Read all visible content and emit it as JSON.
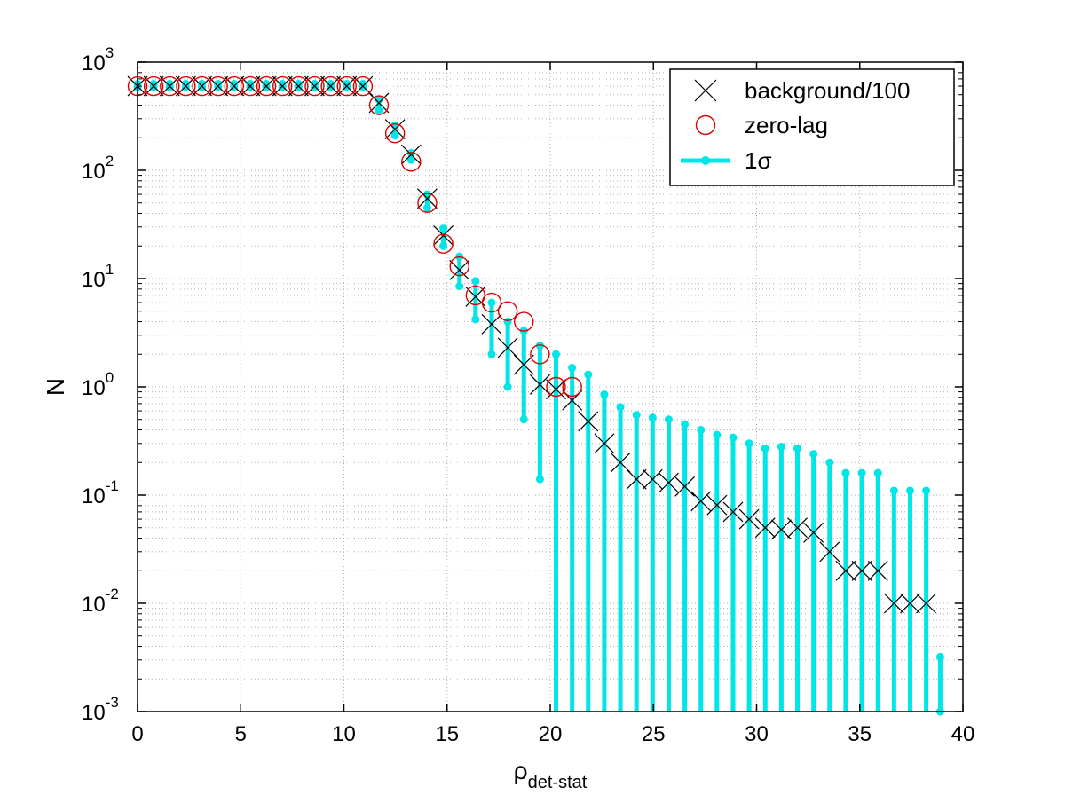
{
  "chart_data": {
    "type": "scatter",
    "title": "",
    "xlabel": "ρ",
    "xlabel_sub": "det-stat",
    "ylabel": "N",
    "xlim": [
      0,
      40
    ],
    "ylim": [
      0.001,
      1000
    ],
    "yscale": "log",
    "grid": true,
    "legend_position": "top-right",
    "x_ticks": [
      "0",
      "5",
      "10",
      "15",
      "20",
      "25",
      "30",
      "35",
      "40"
    ],
    "y_ticks": [
      {
        "base": "10",
        "exp": "-3"
      },
      {
        "base": "10",
        "exp": "-2"
      },
      {
        "base": "10",
        "exp": "-1"
      },
      {
        "base": "10",
        "exp": "0"
      },
      {
        "base": "10",
        "exp": "1"
      },
      {
        "base": "10",
        "exp": "2"
      },
      {
        "base": "10",
        "exp": "3"
      }
    ],
    "series": [
      {
        "name": "background/100",
        "marker": "x",
        "color": "#000000",
        "x": [
          0,
          0.78,
          1.56,
          2.34,
          3.12,
          3.9,
          4.68,
          5.46,
          6.24,
          7.02,
          7.8,
          8.58,
          9.36,
          10.14,
          10.92,
          11.7,
          12.48,
          13.26,
          14.04,
          14.82,
          15.6,
          16.38,
          17.16,
          17.94,
          18.72,
          19.5,
          20.28,
          21.06,
          21.84,
          22.62,
          23.4,
          24.18,
          24.96,
          25.74,
          26.52,
          27.3,
          28.08,
          28.86,
          29.64,
          30.42,
          31.2,
          31.98,
          32.76,
          33.54,
          34.32,
          35.1,
          35.88,
          36.66,
          37.44,
          38.22
        ],
        "y": [
          600,
          600,
          600,
          600,
          600,
          600,
          600,
          600,
          600,
          600,
          600,
          600,
          600,
          600,
          600,
          420,
          240,
          140,
          55,
          25,
          12,
          6.8,
          3.8,
          2.3,
          1.6,
          1.05,
          0.95,
          0.75,
          0.48,
          0.3,
          0.2,
          0.14,
          0.14,
          0.13,
          0.12,
          0.088,
          0.081,
          0.07,
          0.06,
          0.05,
          0.048,
          0.05,
          0.045,
          0.03,
          0.02,
          0.02,
          0.02,
          0.01,
          0.01,
          0.01
        ]
      },
      {
        "name": "zero-lag",
        "marker": "o",
        "color": "#dd0000",
        "x": [
          0,
          0.78,
          1.56,
          2.34,
          3.12,
          3.9,
          4.68,
          5.46,
          6.24,
          7.02,
          7.8,
          8.58,
          9.36,
          10.14,
          10.92,
          11.7,
          12.48,
          13.26,
          14.04,
          14.82,
          15.6,
          16.38,
          17.16,
          17.94,
          18.72,
          19.5,
          20.28,
          21.06
        ],
        "y": [
          600,
          600,
          600,
          600,
          600,
          600,
          600,
          600,
          600,
          600,
          600,
          600,
          600,
          600,
          600,
          400,
          220,
          120,
          50,
          21,
          13,
          7,
          6,
          5,
          4,
          2,
          1,
          1
        ]
      },
      {
        "name": "1σ",
        "marker": "errorbar",
        "color": "#00e5e5",
        "x": [
          0,
          0.78,
          1.56,
          2.34,
          3.12,
          3.9,
          4.68,
          5.46,
          6.24,
          7.02,
          7.8,
          8.58,
          9.36,
          10.14,
          10.92,
          11.7,
          12.48,
          13.26,
          14.04,
          14.82,
          15.6,
          16.38,
          17.16,
          17.94,
          18.72,
          19.5,
          20.28,
          21.06,
          21.84,
          22.62,
          23.4,
          24.18,
          24.96,
          25.74,
          26.52,
          27.3,
          28.08,
          28.86,
          29.64,
          30.42,
          31.2,
          31.98,
          32.76,
          33.54,
          34.32,
          35.1,
          35.88,
          36.66,
          37.44,
          38.22,
          38.9
        ],
        "low": [
          590,
          590,
          590,
          590,
          590,
          590,
          590,
          590,
          590,
          590,
          590,
          590,
          590,
          590,
          590,
          360,
          210,
          125,
          45,
          20,
          8.5,
          4.2,
          2.0,
          1.0,
          0.5,
          0.14,
          0.0001,
          0.0001,
          0.0001,
          0.0001,
          0.0001,
          0.0001,
          0.0001,
          0.0001,
          0.0001,
          0.0001,
          0.0001,
          0.0001,
          0.0001,
          0.0001,
          0.0001,
          0.0001,
          0.0001,
          0.0001,
          0.0001,
          0.0001,
          0.0001,
          0.0001,
          0.0001,
          0.0001,
          0.001
        ],
        "high": [
          630,
          630,
          630,
          630,
          630,
          630,
          630,
          630,
          630,
          630,
          630,
          630,
          630,
          630,
          630,
          450,
          260,
          145,
          60,
          29,
          16,
          9.5,
          6,
          4,
          3.3,
          2.4,
          2,
          1.5,
          1.3,
          0.85,
          0.65,
          0.55,
          0.52,
          0.5,
          0.45,
          0.4,
          0.36,
          0.34,
          0.3,
          0.27,
          0.28,
          0.27,
          0.24,
          0.2,
          0.16,
          0.16,
          0.16,
          0.11,
          0.11,
          0.11,
          0.0032
        ]
      }
    ]
  }
}
